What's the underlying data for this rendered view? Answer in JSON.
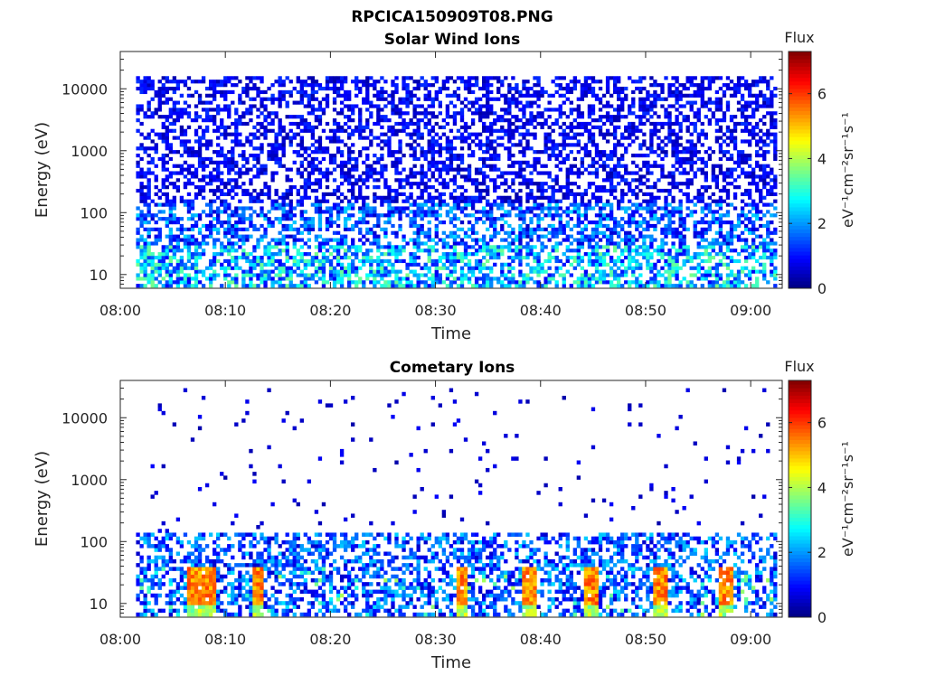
{
  "figure": {
    "title": "RPCICA150909T08.PNG"
  },
  "chart_data": [
    {
      "type": "heatmap",
      "title": "Solar Wind Ions",
      "xlabel": "Time",
      "ylabel": "Energy (eV)",
      "x_tick_labels": [
        "08:00",
        "08:10",
        "08:20",
        "08:30",
        "08:40",
        "08:50",
        "09:00"
      ],
      "x_range": [
        "08:00",
        "09:03"
      ],
      "data_x_range": [
        "08:01.5",
        "09:02.5"
      ],
      "y_scale": "log",
      "y_range": [
        6,
        40000
      ],
      "y_ticks": [
        10,
        100,
        1000,
        10000
      ],
      "y_tick_labels": [
        "10",
        "100",
        "1000",
        "10000"
      ],
      "colorbar": {
        "title": "Flux",
        "label": "eV⁻¹cm⁻²sr⁻¹s⁻¹",
        "range": [
          0,
          7.3
        ],
        "ticks": [
          0,
          2,
          4,
          6
        ],
        "tick_labels": [
          "0",
          "2",
          "4",
          "6"
        ],
        "colormap": "jet"
      },
      "description_values": {
        "energy_max_dense": 15000,
        "low_energy_values_max": 3.5,
        "high_energy_values_typical": 0.6
      },
      "grid": false
    },
    {
      "type": "heatmap",
      "title": "Cometary Ions",
      "xlabel": "Time",
      "ylabel": "Energy (eV)",
      "x_tick_labels": [
        "08:00",
        "08:10",
        "08:20",
        "08:30",
        "08:40",
        "08:50",
        "09:00"
      ],
      "x_range": [
        "08:00",
        "09:03"
      ],
      "data_x_range": [
        "08:01.5",
        "09:02.5"
      ],
      "y_scale": "log",
      "y_range": [
        6,
        40000
      ],
      "y_ticks": [
        10,
        100,
        1000,
        10000
      ],
      "y_tick_labels": [
        "10",
        "100",
        "1000",
        "10000"
      ],
      "colorbar": {
        "title": "Flux",
        "label": "eV⁻¹cm⁻²sr⁻¹s⁻¹",
        "range": [
          0,
          7.3
        ],
        "ticks": [
          0,
          2,
          4,
          6
        ],
        "tick_labels": [
          "0",
          "2",
          "4",
          "6"
        ],
        "colormap": "jet"
      },
      "bursts_minutes": [
        6.8,
        8.2,
        12.9,
        32.3,
        38.8,
        44.6,
        51.3,
        57.5
      ],
      "burst_peak_value": 6.0,
      "dense_energy_max": 120,
      "grid": false
    }
  ]
}
